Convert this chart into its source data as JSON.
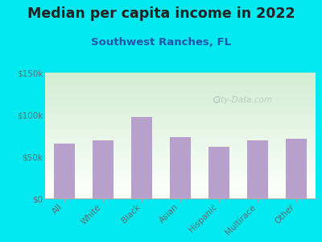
{
  "title": "Median per capita income in 2022",
  "subtitle": "Southwest Ranches, FL",
  "categories": [
    "All",
    "White",
    "Black",
    "Asian",
    "Hispanic",
    "Multirace",
    "Other"
  ],
  "values": [
    65000,
    69000,
    97000,
    73000,
    62000,
    69000,
    71000
  ],
  "bar_color": "#b8a0cc",
  "background_outer": "#00e8f0",
  "title_color": "#222222",
  "subtitle_color": "#2255aa",
  "tick_label_color": "#607070",
  "ylim": [
    0,
    150000
  ],
  "yticks": [
    0,
    50000,
    100000,
    150000
  ],
  "ytick_labels": [
    "$0",
    "$50k",
    "$100k",
    "$150k"
  ],
  "title_fontsize": 12.5,
  "subtitle_fontsize": 9.5,
  "watermark": "City-Data.com"
}
